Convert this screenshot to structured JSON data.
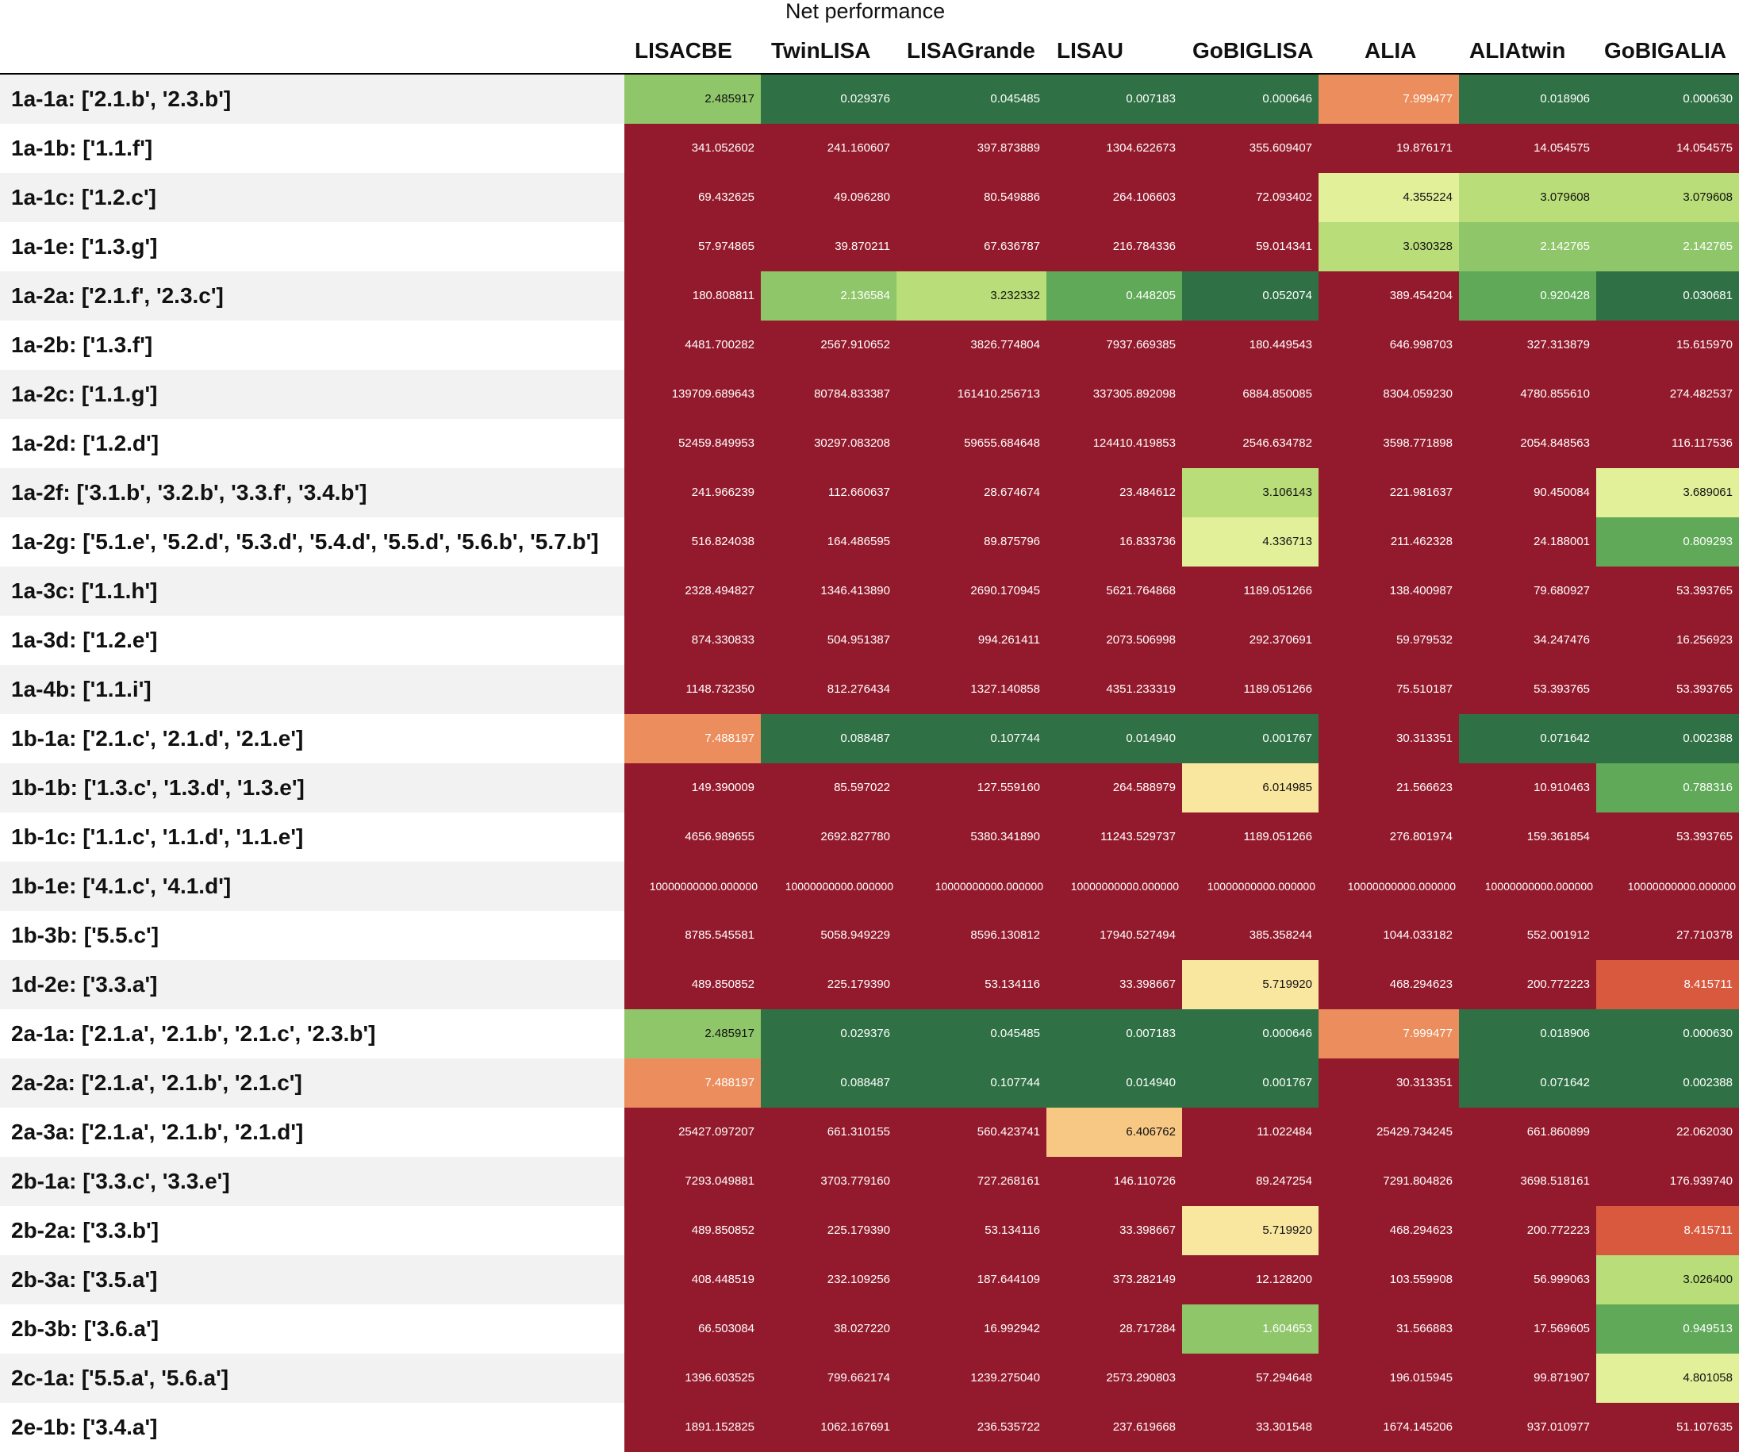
{
  "chart_data": {
    "type": "heatmap",
    "title": "Net performance",
    "columns": [
      "LISACBE",
      "TwinLISA",
      "LISAGrande",
      "LISAU",
      "GoBIGLISA",
      "ALIA",
      "ALIAtwin",
      "GoBIGALIA"
    ],
    "rows": [
      {
        "label": "1a-1a: ['2.1.b', '2.3.b']",
        "values": [
          "2.485917",
          "0.029376",
          "0.045485",
          "0.007183",
          "0.000646",
          "7.999477",
          "0.018906",
          "0.000630"
        ]
      },
      {
        "label": "1a-1b: ['1.1.f']",
        "values": [
          "341.052602",
          "241.160607",
          "397.873889",
          "1304.622673",
          "355.609407",
          "19.876171",
          "14.054575",
          "14.054575"
        ]
      },
      {
        "label": "1a-1c: ['1.2.c']",
        "values": [
          "69.432625",
          "49.096280",
          "80.549886",
          "264.106603",
          "72.093402",
          "4.355224",
          "3.079608",
          "3.079608"
        ]
      },
      {
        "label": "1a-1e: ['1.3.g']",
        "values": [
          "57.974865",
          "39.870211",
          "67.636787",
          "216.784336",
          "59.014341",
          "3.030328",
          "2.142765",
          "2.142765"
        ]
      },
      {
        "label": "1a-2a: ['2.1.f', '2.3.c']",
        "values": [
          "180.808811",
          "2.136584",
          "3.232332",
          "0.448205",
          "0.052074",
          "389.454204",
          "0.920428",
          "0.030681"
        ]
      },
      {
        "label": "1a-2b: ['1.3.f']",
        "values": [
          "4481.700282",
          "2567.910652",
          "3826.774804",
          "7937.669385",
          "180.449543",
          "646.998703",
          "327.313879",
          "15.615970"
        ]
      },
      {
        "label": "1a-2c: ['1.1.g']",
        "values": [
          "139709.689643",
          "80784.833387",
          "161410.256713",
          "337305.892098",
          "6884.850085",
          "8304.059230",
          "4780.855610",
          "274.482537"
        ]
      },
      {
        "label": "1a-2d: ['1.2.d']",
        "values": [
          "52459.849953",
          "30297.083208",
          "59655.684648",
          "124410.419853",
          "2546.634782",
          "3598.771898",
          "2054.848563",
          "116.117536"
        ]
      },
      {
        "label": "1a-2f: ['3.1.b', '3.2.b', '3.3.f', '3.4.b']",
        "values": [
          "241.966239",
          "112.660637",
          "28.674674",
          "23.484612",
          "3.106143",
          "221.981637",
          "90.450084",
          "3.689061"
        ]
      },
      {
        "label": "1a-2g: ['5.1.e', '5.2.d', '5.3.d', '5.4.d', '5.5.d', '5.6.b', '5.7.b']",
        "values": [
          "516.824038",
          "164.486595",
          "89.875796",
          "16.833736",
          "4.336713",
          "211.462328",
          "24.188001",
          "0.809293"
        ]
      },
      {
        "label": "1a-3c: ['1.1.h']",
        "values": [
          "2328.494827",
          "1346.413890",
          "2690.170945",
          "5621.764868",
          "1189.051266",
          "138.400987",
          "79.680927",
          "53.393765"
        ]
      },
      {
        "label": "1a-3d: ['1.2.e']",
        "values": [
          "874.330833",
          "504.951387",
          "994.261411",
          "2073.506998",
          "292.370691",
          "59.979532",
          "34.247476",
          "16.256923"
        ]
      },
      {
        "label": "1a-4b: ['1.1.i']",
        "values": [
          "1148.732350",
          "812.276434",
          "1327.140858",
          "4351.233319",
          "1189.051266",
          "75.510187",
          "53.393765",
          "53.393765"
        ]
      },
      {
        "label": "1b-1a: ['2.1.c', '2.1.d', '2.1.e']",
        "values": [
          "7.488197",
          "0.088487",
          "0.107744",
          "0.014940",
          "0.001767",
          "30.313351",
          "0.071642",
          "0.002388"
        ]
      },
      {
        "label": "1b-1b: ['1.3.c', '1.3.d', '1.3.e']",
        "values": [
          "149.390009",
          "85.597022",
          "127.559160",
          "264.588979",
          "6.014985",
          "21.566623",
          "10.910463",
          "0.788316"
        ]
      },
      {
        "label": "1b-1c: ['1.1.c', '1.1.d', '1.1.e']",
        "values": [
          "4656.989655",
          "2692.827780",
          "5380.341890",
          "11243.529737",
          "1189.051266",
          "276.801974",
          "159.361854",
          "53.393765"
        ]
      },
      {
        "label": "1b-1e: ['4.1.c', '4.1.d']",
        "values": [
          "10000000000.000000",
          "10000000000.000000",
          "10000000000.000000",
          "10000000000.000000",
          "10000000000.000000",
          "10000000000.000000",
          "10000000000.000000",
          "10000000000.000000"
        ]
      },
      {
        "label": "1b-3b: ['5.5.c']",
        "values": [
          "8785.545581",
          "5058.949229",
          "8596.130812",
          "17940.527494",
          "385.358244",
          "1044.033182",
          "552.001912",
          "27.710378"
        ]
      },
      {
        "label": "1d-2e: ['3.3.a']",
        "values": [
          "489.850852",
          "225.179390",
          "53.134116",
          "33.398667",
          "5.719920",
          "468.294623",
          "200.772223",
          "8.415711"
        ]
      },
      {
        "label": "2a-1a: ['2.1.a', '2.1.b', '2.1.c', '2.3.b']",
        "values": [
          "2.485917",
          "0.029376",
          "0.045485",
          "0.007183",
          "0.000646",
          "7.999477",
          "0.018906",
          "0.000630"
        ]
      },
      {
        "label": "2a-2a: ['2.1.a', '2.1.b', '2.1.c']",
        "values": [
          "7.488197",
          "0.088487",
          "0.107744",
          "0.014940",
          "0.001767",
          "30.313351",
          "0.071642",
          "0.002388"
        ]
      },
      {
        "label": "2a-3a: ['2.1.a', '2.1.b', '2.1.d']",
        "values": [
          "25427.097207",
          "661.310155",
          "560.423741",
          "6.406762",
          "11.022484",
          "25429.734245",
          "661.860899",
          "22.062030"
        ]
      },
      {
        "label": "2b-1a: ['3.3.c', '3.3.e']",
        "values": [
          "7293.049881",
          "3703.779160",
          "727.268161",
          "146.110726",
          "89.247254",
          "7291.804826",
          "3698.518161",
          "176.939740"
        ]
      },
      {
        "label": "2b-2a: ['3.3.b']",
        "values": [
          "489.850852",
          "225.179390",
          "53.134116",
          "33.398667",
          "5.719920",
          "468.294623",
          "200.772223",
          "8.415711"
        ]
      },
      {
        "label": "2b-3a: ['3.5.a']",
        "values": [
          "408.448519",
          "232.109256",
          "187.644109",
          "373.282149",
          "12.128200",
          "103.559908",
          "56.999063",
          "3.026400"
        ]
      },
      {
        "label": "2b-3b: ['3.6.a']",
        "values": [
          "66.503084",
          "38.027220",
          "16.992942",
          "28.717284",
          "1.604653",
          "31.566883",
          "17.569605",
          "0.949513"
        ]
      },
      {
        "label": "2c-1a: ['5.5.a', '5.6.a']",
        "values": [
          "1396.603525",
          "799.662174",
          "1239.275040",
          "2573.290803",
          "57.294648",
          "196.015945",
          "99.871907",
          "4.801058"
        ]
      },
      {
        "label": "2e-1b: ['3.4.a']",
        "values": [
          "1891.152825",
          "1062.167691",
          "236.535722",
          "237.619668",
          "33.301548",
          "1674.145206",
          "937.010977",
          "51.107635"
        ]
      }
    ],
    "colors": {
      "dark_red": "#931a2c",
      "red_orange": "#d9593f",
      "orange": "#eb8d5c",
      "light_orange": "#f6c884",
      "pale_yellow": "#f9e79f",
      "yellow_green": "#e3f09a",
      "light_green": "#b9dd78",
      "green": "#8fc66a",
      "mid_green": "#5fa958",
      "dark_green": "#2f7145",
      "stripe": "#f2f2f2"
    }
  }
}
